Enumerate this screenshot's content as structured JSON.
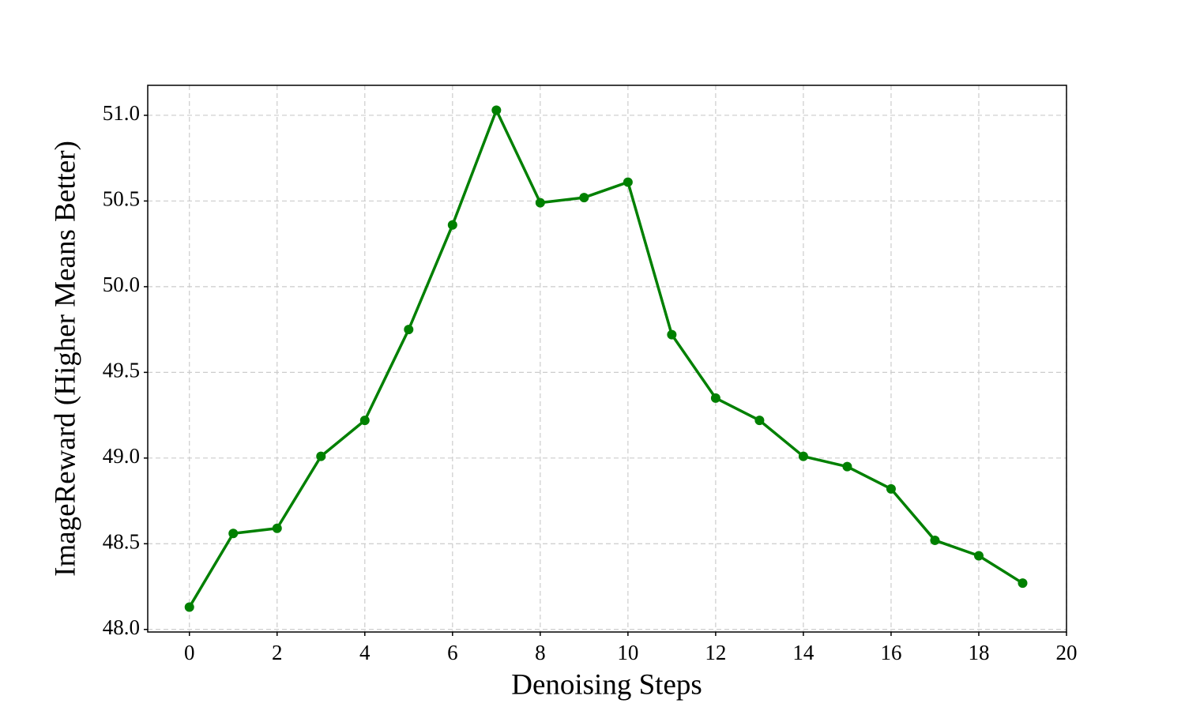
{
  "chart_data": {
    "type": "line",
    "xlabel": "Denoising Steps",
    "ylabel": "ImageReward (Higher Means Better)",
    "x": [
      0,
      1,
      2,
      3,
      4,
      5,
      6,
      7,
      8,
      9,
      10,
      11,
      12,
      13,
      14,
      15,
      16,
      17,
      18,
      19
    ],
    "series": [
      {
        "name": "ImageReward",
        "color": "#008000",
        "values": [
          48.13,
          48.56,
          48.59,
          49.01,
          49.22,
          49.75,
          50.36,
          51.03,
          50.49,
          50.52,
          50.61,
          49.72,
          49.35,
          49.22,
          49.01,
          48.95,
          48.82,
          48.52,
          48.43,
          48.27
        ]
      }
    ],
    "xlim": [
      -0.95,
      20
    ],
    "ylim": [
      47.985,
      51.175
    ],
    "xticks": [
      0,
      2,
      4,
      6,
      8,
      10,
      12,
      14,
      16,
      18,
      20
    ],
    "yticks": [
      {
        "value": 48,
        "label": "48.0"
      },
      {
        "value": 48.5,
        "label": "48.5"
      },
      {
        "value": 49,
        "label": "49.0"
      },
      {
        "value": 49.5,
        "label": "49.5"
      },
      {
        "value": 50,
        "label": "50.0"
      },
      {
        "value": 50.5,
        "label": "50.5"
      },
      {
        "value": 51,
        "label": "51.0"
      }
    ],
    "grid": true
  }
}
